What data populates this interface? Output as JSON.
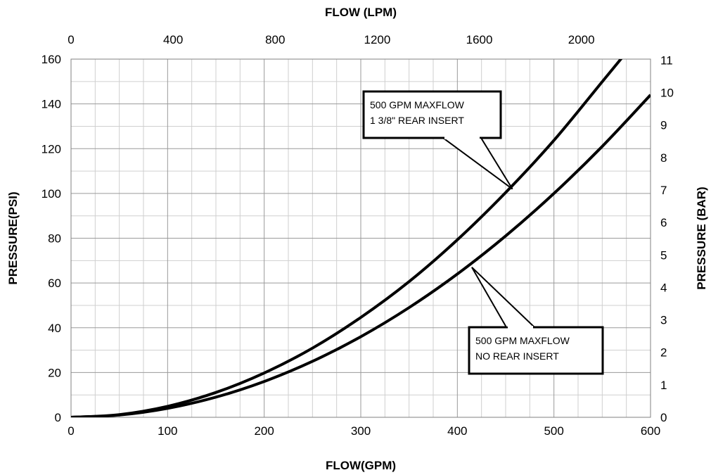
{
  "chart_data": {
    "type": "line",
    "title": "",
    "xlabel": "FLOW(GPM)",
    "ylabel": "PRESSURE(PSI)",
    "x2label": "FLOW (LPM)",
    "y2label": "PRESSURE (BAR)",
    "xlim": [
      0,
      600
    ],
    "ylim": [
      0,
      160
    ],
    "x2lim": [
      0,
      2271
    ],
    "y2lim": [
      0,
      11.03
    ],
    "x_ticks": [
      0,
      100,
      200,
      300,
      400,
      500,
      600
    ],
    "y_ticks": [
      0,
      20,
      40,
      60,
      80,
      100,
      120,
      140,
      160
    ],
    "x2_ticks": [
      0,
      400,
      800,
      1200,
      1600,
      2000
    ],
    "y2_ticks": [
      0,
      1,
      2,
      3,
      4,
      5,
      6,
      7,
      8,
      9,
      10,
      11
    ],
    "grid": true,
    "minor_grid": true,
    "series": [
      {
        "name": "500 GPM MAXFLOW 1 3/8\" REAR INSERT",
        "x": [
          0,
          50,
          100,
          150,
          200,
          250,
          300,
          350,
          400,
          450,
          500,
          550,
          570
        ],
        "y": [
          0,
          1.2,
          4.9,
          11.1,
          19.8,
          30.9,
          44.6,
          60.6,
          79.3,
          100.4,
          123.7,
          149.9,
          160.4
        ]
      },
      {
        "name": "500 GPM MAXFLOW NO REAR INSERT",
        "x": [
          0,
          50,
          100,
          150,
          200,
          250,
          300,
          350,
          400,
          450,
          500,
          550,
          600
        ],
        "y": [
          0,
          1.0,
          4.0,
          9.0,
          16.0,
          25.0,
          36.0,
          49.0,
          64.0,
          81.0,
          100.0,
          121.0,
          144.0
        ]
      }
    ],
    "annotations": [
      {
        "lines": [
          "500 GPM MAXFLOW",
          "1 3/8\" REAR INSERT"
        ],
        "series": 0,
        "target": [
          457,
          102
        ]
      },
      {
        "lines": [
          "500 GPM MAXFLOW",
          "NO REAR INSERT"
        ],
        "series": 1,
        "target": [
          415,
          67
        ]
      }
    ]
  }
}
